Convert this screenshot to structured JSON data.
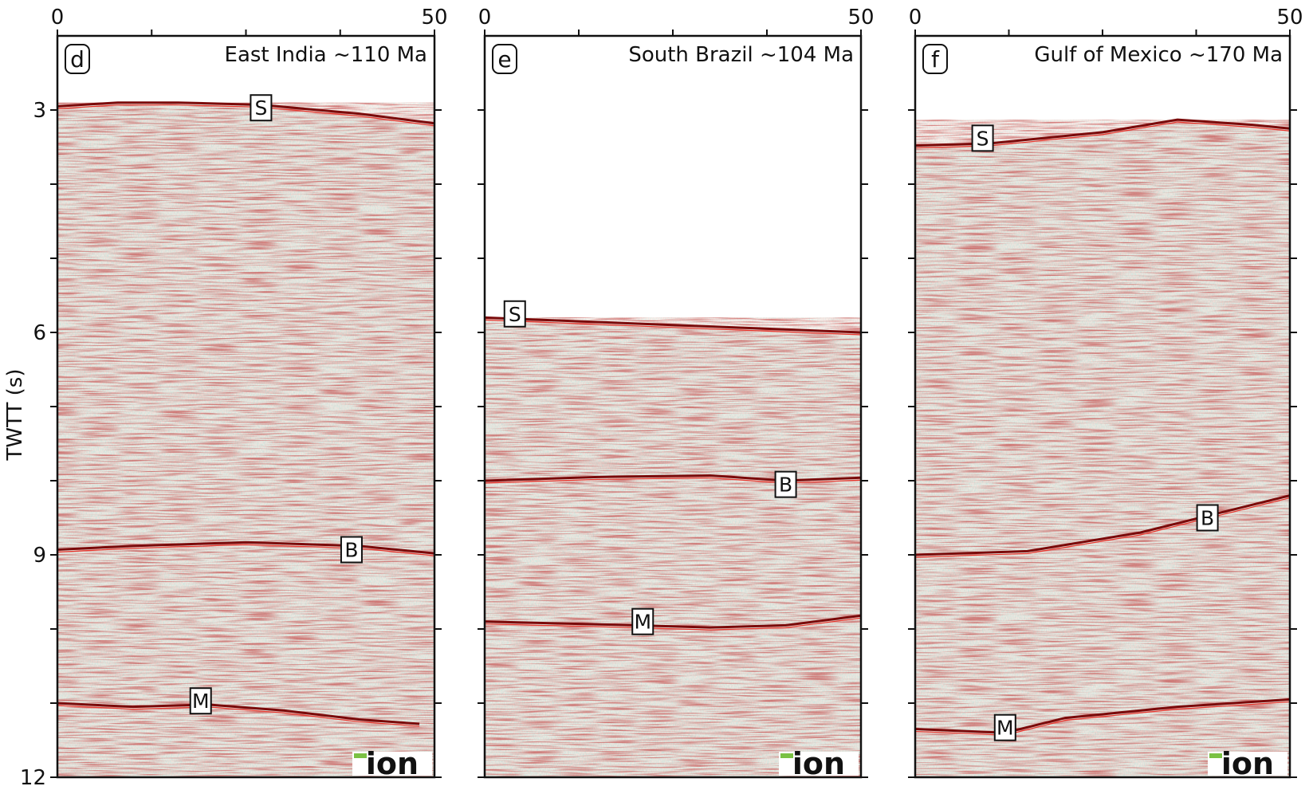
{
  "figure": {
    "y_axis_label": "TWTT (s)",
    "y_ticks": [
      3,
      6,
      9,
      12
    ],
    "y_range": [
      12,
      2
    ],
    "x_range": [
      0,
      50
    ],
    "x_tick_labels": [
      "0",
      "50"
    ]
  },
  "panels": [
    {
      "letter": "d",
      "title": "East India ~110 Ma",
      "logo_text": "ion",
      "horizons": [
        {
          "name": "S",
          "twtt_profile": [
            [
              0,
              2.95
            ],
            [
              8,
              2.9
            ],
            [
              16,
              2.9
            ],
            [
              27,
              2.93
            ],
            [
              40,
              3.05
            ],
            [
              50,
              3.18
            ]
          ],
          "label_at": [
            27,
            2.97
          ]
        },
        {
          "name": "B",
          "twtt_profile": [
            [
              0,
              8.93
            ],
            [
              10,
              8.88
            ],
            [
              25,
              8.83
            ],
            [
              40,
              8.88
            ],
            [
              50,
              8.98
            ]
          ],
          "label_at": [
            39,
            8.93
          ]
        },
        {
          "name": "M",
          "twtt_profile": [
            [
              0,
              11.0
            ],
            [
              10,
              11.05
            ],
            [
              20,
              11.02
            ],
            [
              30,
              11.1
            ],
            [
              40,
              11.22
            ],
            [
              48,
              11.28
            ]
          ],
          "label_at": [
            19,
            10.97
          ]
        }
      ]
    },
    {
      "letter": "e",
      "title": "South Brazil ~104 Ma",
      "logo_text": "ion",
      "seafloor_start": 5.8,
      "horizons": [
        {
          "name": "S",
          "twtt_profile": [
            [
              0,
              5.8
            ],
            [
              25,
              5.9
            ],
            [
              50,
              6.0
            ]
          ],
          "label_at": [
            4,
            5.75
          ]
        },
        {
          "name": "B",
          "twtt_profile": [
            [
              0,
              8.0
            ],
            [
              15,
              7.95
            ],
            [
              30,
              7.93
            ],
            [
              40,
              8.0
            ],
            [
              50,
              7.96
            ]
          ],
          "label_at": [
            40,
            8.05
          ]
        },
        {
          "name": "M",
          "twtt_profile": [
            [
              0,
              9.9
            ],
            [
              20,
              9.95
            ],
            [
              30,
              9.98
            ],
            [
              40,
              9.95
            ],
            [
              50,
              9.82
            ]
          ],
          "label_at": [
            21,
            9.9
          ]
        }
      ]
    },
    {
      "letter": "f",
      "title": "Gulf of Mexico ~170 Ma",
      "logo_text": "ion",
      "horizons": [
        {
          "name": "S",
          "twtt_profile": [
            [
              0,
              3.48
            ],
            [
              10,
              3.45
            ],
            [
              25,
              3.3
            ],
            [
              35,
              3.13
            ],
            [
              45,
              3.2
            ],
            [
              50,
              3.25
            ]
          ],
          "label_at": [
            9,
            3.38
          ]
        },
        {
          "name": "B",
          "twtt_profile": [
            [
              0,
              9.0
            ],
            [
              15,
              8.95
            ],
            [
              30,
              8.7
            ],
            [
              40,
              8.45
            ],
            [
              50,
              8.2
            ]
          ],
          "label_at": [
            39,
            8.5
          ]
        },
        {
          "name": "M",
          "twtt_profile": [
            [
              0,
              11.35
            ],
            [
              12,
              11.4
            ],
            [
              20,
              11.2
            ],
            [
              35,
              11.05
            ],
            [
              50,
              10.95
            ]
          ],
          "label_at": [
            12,
            11.33
          ]
        }
      ]
    }
  ]
}
